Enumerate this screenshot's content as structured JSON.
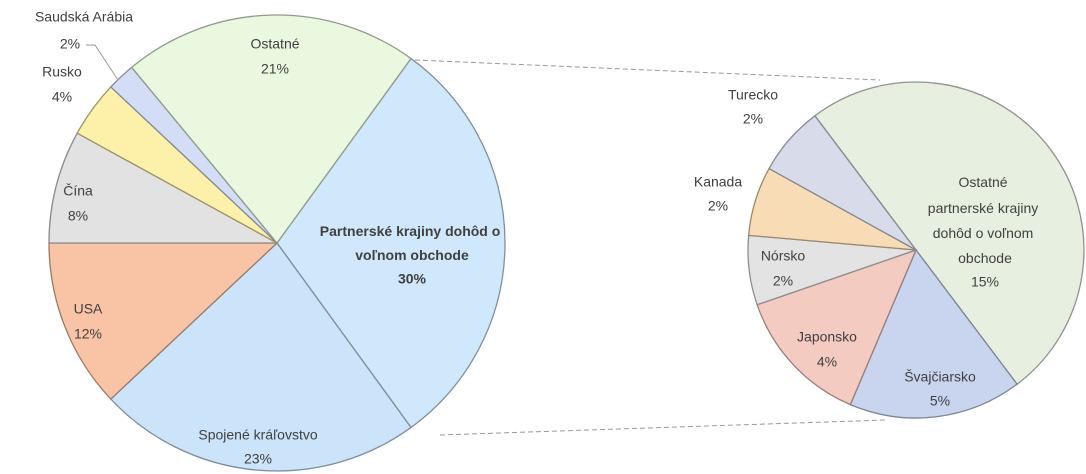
{
  "chart_data": [
    {
      "type": "pie",
      "categories": [
        "Partnerské krajiny dohôd o voľnom obchode",
        "Spojené kráľovstvo",
        "USA",
        "Čína",
        "Rusko",
        "Saudská Arábia",
        "Ostatné"
      ],
      "values": [
        30,
        23,
        12,
        8,
        4,
        2,
        21
      ],
      "value_labels": [
        "30%",
        "23%",
        "12%",
        "8%",
        "4%",
        "2%",
        "21%"
      ],
      "colors": [
        "#cfe8fb",
        "#cbe4fa",
        "#f9c4a6",
        "#e2e2e2",
        "#fdf0a8",
        "#d3ddf5",
        "#eaf8e0"
      ]
    },
    {
      "type": "pie",
      "categories": [
        "Ostatné partnerské krajiny dohôd o voľnom obchode",
        "Švajčiarsko",
        "Japonsko",
        "Nórsko",
        "Kanada",
        "Turecko"
      ],
      "values": [
        15,
        5,
        4,
        2,
        2,
        2
      ],
      "value_labels": [
        "15%",
        "5%",
        "4%",
        "2%",
        "2%",
        "2%"
      ],
      "colors": [
        "#e7efe0",
        "#c9d5ef",
        "#f3cbc0",
        "#e3e3e3",
        "#f7dcb5",
        "#d8dcea"
      ]
    }
  ]
}
